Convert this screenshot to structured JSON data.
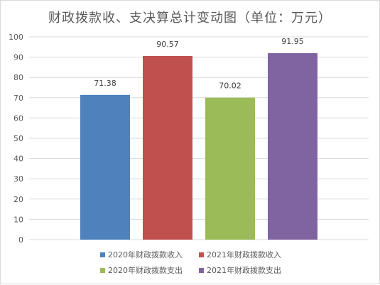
{
  "chart_data": {
    "type": "bar",
    "title": "财政拨款收、支决算总计变动图（单位：万元）",
    "categories": [
      "2020年财政拨款收入",
      "2021年财政拨款收入",
      "2020年财政拨款支出",
      "2021年财政拨款支出"
    ],
    "values": [
      71.38,
      90.57,
      70.02,
      91.95
    ],
    "value_labels": [
      "71.38",
      "90.57",
      "70.02",
      "91.95"
    ],
    "colors": [
      "#4f81bd",
      "#c0504d",
      "#9bbb59",
      "#8064a2"
    ],
    "ylim": [
      0,
      100
    ],
    "yticks": [
      "0",
      "10",
      "20",
      "30",
      "40",
      "50",
      "60",
      "70",
      "80",
      "90",
      "100"
    ],
    "grid": true,
    "legend_position": "bottom"
  }
}
